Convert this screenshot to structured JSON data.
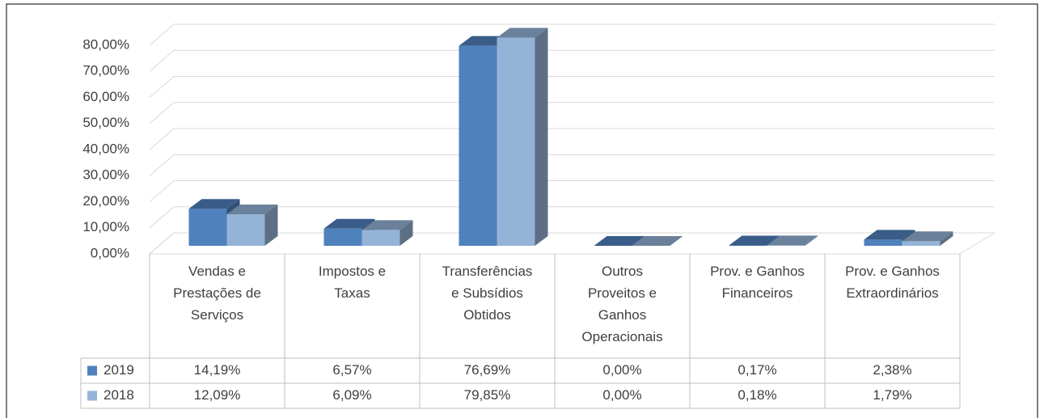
{
  "chart_data": {
    "type": "bar",
    "categories": [
      "Vendas e Prestações de Serviços",
      "Impostos e Taxas",
      "Transferências e Subsídios Obtidos",
      "Outros Proveitos e Ganhos Operacionais",
      "Prov. e Ganhos Financeiros",
      "Prov. e Ganhos Extraordinários"
    ],
    "series": [
      {
        "name": "2019",
        "color": "#4f81bd",
        "values": [
          14.19,
          6.57,
          76.69,
          0,
          0.17,
          2.38
        ],
        "value_labels": [
          "14,19%",
          "6,57%",
          "76,69%",
          "0,00%",
          "0,17%",
          "2,38%"
        ]
      },
      {
        "name": "2018",
        "color": "#95b3d7",
        "values": [
          12.09,
          6.09,
          79.85,
          0,
          0.18,
          1.79
        ],
        "value_labels": [
          "12,09%",
          "6,09%",
          "79,85%",
          "0,00%",
          "0,18%",
          "1,79%"
        ]
      }
    ],
    "ylim": [
      0,
      80
    ],
    "yticks": [
      {
        "value": 0,
        "label": "0,00%"
      },
      {
        "value": 10,
        "label": "10,00%"
      },
      {
        "value": 20,
        "label": "20,00%"
      },
      {
        "value": 30,
        "label": "30,00%"
      },
      {
        "value": 40,
        "label": "40,00%"
      },
      {
        "value": 50,
        "label": "50,00%"
      },
      {
        "value": 60,
        "label": "60,00%"
      },
      {
        "value": 70,
        "label": "70,00%"
      },
      {
        "value": 80,
        "label": "80,00%"
      }
    ],
    "grid": true
  }
}
